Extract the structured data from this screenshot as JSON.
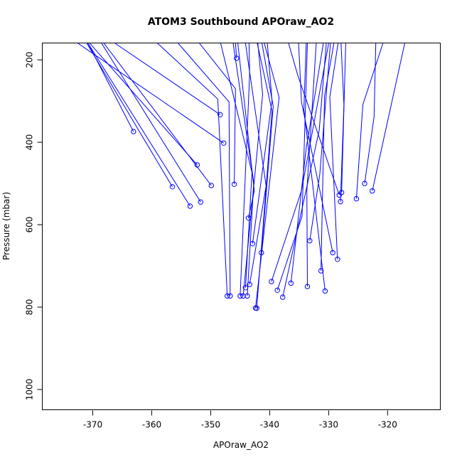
{
  "chart_data": {
    "type": "line",
    "title": "ATOM3 Southbound APOraw_AO2",
    "xlabel": "APOraw_AO2",
    "ylabel": "Pressure (mbar)",
    "xlim": [
      -378.5,
      -311
    ],
    "ylim": [
      1050,
      160
    ],
    "y_inverted": true,
    "x_ticks": [
      -370,
      -360,
      -350,
      -340,
      -330,
      -320
    ],
    "y_ticks": [
      200,
      400,
      600,
      800,
      1000
    ],
    "colors": {
      "series": "#0000ff"
    },
    "series": [
      {
        "points": [
          [
            -363.1,
            374
          ],
          [
            -370.8,
            160
          ]
        ]
      },
      {
        "points": [
          [
            -356.5,
            508
          ],
          [
            -371.0,
            160
          ]
        ]
      },
      {
        "points": [
          [
            -353.5,
            555
          ],
          [
            -370.8,
            160
          ]
        ]
      },
      {
        "points": [
          [
            -352.3,
            455
          ],
          [
            -370.5,
            160
          ]
        ]
      },
      {
        "points": [
          [
            -351.7,
            545
          ],
          [
            -368.5,
            160
          ]
        ]
      },
      {
        "points": [
          [
            -349.9,
            505
          ],
          [
            -368.1,
            160
          ]
        ]
      },
      {
        "points": [
          [
            -348.4,
            333
          ],
          [
            -366.2,
            160
          ]
        ]
      },
      {
        "points": [
          [
            -347.2,
            773
          ],
          [
            -348.8,
            295
          ],
          [
            -359.0,
            160
          ]
        ]
      },
      {
        "points": [
          [
            -346.7,
            773
          ],
          [
            -346.9,
            302
          ],
          [
            -355.5,
            160
          ]
        ]
      },
      {
        "points": [
          [
            -346.0,
            502
          ],
          [
            -345.8,
            270
          ],
          [
            -351.9,
            160
          ]
        ]
      },
      {
        "points": [
          [
            -345.6,
            196
          ],
          [
            -345.8,
            160
          ]
        ]
      },
      {
        "points": [
          [
            -345.0,
            773
          ],
          [
            -343.4,
            236
          ],
          [
            -343.5,
            160
          ]
        ]
      },
      {
        "points": [
          [
            -344.5,
            773
          ],
          [
            -341.2,
            284
          ],
          [
            -342.0,
            160
          ]
        ]
      },
      {
        "points": [
          [
            -344.1,
            753
          ],
          [
            -343.0,
            473
          ],
          [
            -348.3,
            160
          ]
        ]
      },
      {
        "points": [
          [
            -343.8,
            773
          ],
          [
            -342.7,
            497
          ],
          [
            -346.2,
            160
          ]
        ]
      },
      {
        "points": [
          [
            -343.6,
            584
          ],
          [
            -342.6,
            518
          ],
          [
            -345.4,
            160
          ]
        ]
      },
      {
        "points": [
          [
            -343.4,
            745
          ],
          [
            -340.6,
            506
          ],
          [
            -344.1,
            160
          ]
        ]
      },
      {
        "points": [
          [
            -342.9,
            646
          ],
          [
            -339.6,
            299
          ],
          [
            -340.4,
            160
          ]
        ]
      },
      {
        "points": [
          [
            -342.4,
            802
          ],
          [
            -338.4,
            291
          ],
          [
            -340.9,
            160
          ]
        ]
      },
      {
        "points": [
          [
            -342.2,
            803
          ],
          [
            -339.6,
            324
          ],
          [
            -342.1,
            160
          ]
        ]
      },
      {
        "points": [
          [
            -341.4,
            668
          ],
          [
            -339.4,
            313
          ],
          [
            -341.3,
            160
          ]
        ]
      },
      {
        "points": [
          [
            -337.8,
            776
          ],
          [
            -331.6,
            371
          ],
          [
            -330.4,
            160
          ]
        ]
      },
      {
        "points": [
          [
            -336.4,
            742
          ],
          [
            -333.8,
            415
          ],
          [
            -330.9,
            160
          ]
        ]
      },
      {
        "points": [
          [
            -339.7,
            738
          ],
          [
            -334.6,
            517
          ],
          [
            -330.0,
            160
          ]
        ]
      },
      {
        "points": [
          [
            -338.7,
            759
          ],
          [
            -334.5,
            579
          ],
          [
            -333.6,
            160
          ]
        ]
      },
      {
        "points": [
          [
            -333.6,
            750
          ],
          [
            -333.7,
            518
          ],
          [
            -332.1,
            160
          ]
        ]
      },
      {
        "points": [
          [
            -333.2,
            639
          ],
          [
            -331.5,
            478
          ],
          [
            -329.7,
            160
          ]
        ]
      },
      {
        "points": [
          [
            -331.3,
            712
          ],
          [
            -330.7,
            288
          ],
          [
            -329.1,
            160
          ]
        ]
      },
      {
        "points": [
          [
            -330.6,
            761
          ],
          [
            -334.2,
            320
          ],
          [
            -333.8,
            160
          ]
        ]
      },
      {
        "points": [
          [
            -329.3,
            668
          ],
          [
            -334.6,
            303
          ],
          [
            -335.1,
            160
          ]
        ]
      },
      {
        "points": [
          [
            -328.5,
            684
          ],
          [
            -329.8,
            291
          ],
          [
            -328.4,
            160
          ]
        ]
      },
      {
        "points": [
          [
            -328.2,
            528
          ],
          [
            -335.2,
            239
          ],
          [
            -336.8,
            160
          ]
        ]
      },
      {
        "points": [
          [
            -328.0,
            544
          ],
          [
            -327.4,
            310
          ],
          [
            -327.9,
            160
          ]
        ]
      },
      {
        "points": [
          [
            -327.8,
            522
          ],
          [
            -327.1,
            160
          ]
        ]
      },
      {
        "points": [
          [
            -325.3,
            537
          ],
          [
            -324.2,
            309
          ],
          [
            -320.8,
            160
          ]
        ]
      },
      {
        "points": [
          [
            -323.9,
            500
          ],
          [
            -322.3,
            338
          ],
          [
            -322.0,
            160
          ]
        ]
      },
      {
        "points": [
          [
            -322.6,
            518
          ],
          [
            -317.1,
            160
          ]
        ]
      },
      {
        "points": [
          [
            -347.8,
            402
          ],
          [
            -372.5,
            160
          ]
        ]
      }
    ]
  }
}
